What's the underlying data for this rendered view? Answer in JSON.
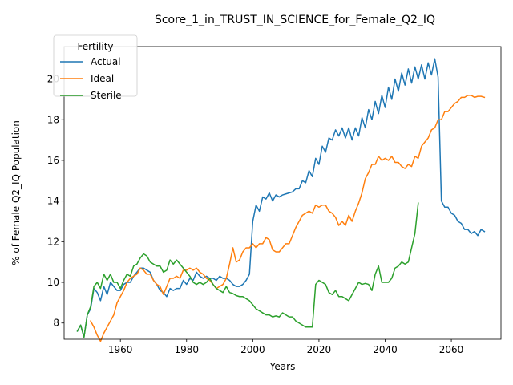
{
  "chart_data": {
    "type": "line",
    "title": "Score_1_in_TRUST_IN_SCIENCE_for_Female_Q2_IQ",
    "xlabel": "Years",
    "ylabel": "% of Female Q2_IQ Population",
    "xlim": [
      1943,
      2075
    ],
    "ylim": [
      7.2,
      21.6
    ],
    "xticks": [
      1960,
      1980,
      2000,
      2020,
      2040,
      2060
    ],
    "yticks": [
      8,
      10,
      12,
      14,
      16,
      18,
      20
    ],
    "grid": false,
    "legend": {
      "title": "Fertility",
      "position": "top-left"
    },
    "series": [
      {
        "name": "Actual",
        "color": "#1f77b4",
        "x": [
          1947,
          1948,
          1949,
          1950,
          1951,
          1952,
          1953,
          1954,
          1955,
          1956,
          1957,
          1958,
          1959,
          1960,
          1961,
          1962,
          1963,
          1964,
          1965,
          1966,
          1967,
          1968,
          1969,
          1970,
          1971,
          1972,
          1973,
          1974,
          1975,
          1976,
          1977,
          1978,
          1979,
          1980,
          1981,
          1982,
          1983,
          1984,
          1985,
          1986,
          1987,
          1988,
          1989,
          1990,
          1991,
          1992,
          1993,
          1994,
          1995,
          1996,
          1997,
          1998,
          1999,
          2000,
          2001,
          2002,
          2003,
          2004,
          2005,
          2006,
          2007,
          2008,
          2009,
          2010,
          2011,
          2012,
          2013,
          2014,
          2015,
          2016,
          2017,
          2018,
          2019,
          2020,
          2021,
          2022,
          2023,
          2024,
          2025,
          2026,
          2027,
          2028,
          2029,
          2030,
          2031,
          2032,
          2033,
          2034,
          2035,
          2036,
          2037,
          2038,
          2039,
          2040,
          2041,
          2042,
          2043,
          2044,
          2045,
          2046,
          2047,
          2048,
          2049,
          2050,
          2051,
          2052,
          2053,
          2054,
          2055,
          2056,
          2057,
          2058,
          2059,
          2060,
          2061,
          2062,
          2063,
          2064,
          2065,
          2066,
          2067,
          2068,
          2069,
          2070
        ],
        "values": [
          7.6,
          7.9,
          7.3,
          8.4,
          8.7,
          9.7,
          9.5,
          9.1,
          9.8,
          9.4,
          10.0,
          9.8,
          9.6,
          9.6,
          9.9,
          10.0,
          10.0,
          10.3,
          10.5,
          10.7,
          10.7,
          10.6,
          10.5,
          10.1,
          9.9,
          9.6,
          9.5,
          9.3,
          9.7,
          9.6,
          9.7,
          9.7,
          10.1,
          9.9,
          10.2,
          10.1,
          10.5,
          10.3,
          10.2,
          10.3,
          10.2,
          10.2,
          10.1,
          10.3,
          10.2,
          10.2,
          10.1,
          9.9,
          9.8,
          9.8,
          9.9,
          10.1,
          10.4,
          13.0,
          13.8,
          13.5,
          14.2,
          14.1,
          14.4,
          14.0,
          14.3,
          14.2,
          14.3,
          14.35,
          14.4,
          14.45,
          14.6,
          14.6,
          15.0,
          14.9,
          15.5,
          15.2,
          16.1,
          15.8,
          16.7,
          16.4,
          17.1,
          17.0,
          17.5,
          17.2,
          17.6,
          17.1,
          17.6,
          17.0,
          17.6,
          17.2,
          18.1,
          17.6,
          18.5,
          18.0,
          18.9,
          18.3,
          19.2,
          18.6,
          19.6,
          19.0,
          20.0,
          19.4,
          20.3,
          19.7,
          20.5,
          19.8,
          20.6,
          20.0,
          20.7,
          20.0,
          20.8,
          20.2,
          21.0,
          20.1,
          14.0,
          13.7,
          13.7,
          13.4,
          13.3,
          13.0,
          12.9,
          12.6,
          12.6,
          12.4,
          12.5,
          12.3,
          12.6,
          12.5
        ]
      },
      {
        "name": "Ideal",
        "color": "#ff7f0e",
        "x": [
          1951,
          1952,
          1953,
          1954,
          1955,
          1956,
          1957,
          1958,
          1959,
          1960,
          1961,
          1962,
          1963,
          1964,
          1965,
          1966,
          1967,
          1968,
          1969,
          1970,
          1971,
          1972,
          1973,
          1974,
          1975,
          1976,
          1977,
          1978,
          1979,
          1980,
          1981,
          1982,
          1983,
          1984,
          1985,
          1986,
          1987,
          1988,
          1989,
          1990,
          1991,
          1992,
          1993,
          1994,
          1995,
          1996,
          1997,
          1998,
          1999,
          2000,
          2001,
          2002,
          2003,
          2004,
          2005,
          2006,
          2007,
          2008,
          2009,
          2010,
          2011,
          2012,
          2013,
          2014,
          2015,
          2016,
          2017,
          2018,
          2019,
          2020,
          2021,
          2022,
          2023,
          2024,
          2025,
          2026,
          2027,
          2028,
          2029,
          2030,
          2031,
          2032,
          2033,
          2034,
          2035,
          2036,
          2037,
          2038,
          2039,
          2040,
          2041,
          2042,
          2043,
          2044,
          2045,
          2046,
          2047,
          2048,
          2049,
          2050,
          2051,
          2052,
          2053,
          2054,
          2055,
          2056,
          2057,
          2058,
          2059,
          2060,
          2061,
          2062,
          2063,
          2064,
          2065,
          2066,
          2067,
          2068,
          2069,
          2070
        ],
        "values": [
          8.1,
          7.8,
          7.4,
          7.1,
          7.5,
          7.8,
          8.1,
          8.4,
          9.0,
          9.3,
          9.6,
          10.0,
          10.2,
          10.3,
          10.4,
          10.7,
          10.6,
          10.4,
          10.4,
          10.1,
          9.9,
          9.8,
          9.4,
          9.8,
          10.2,
          10.2,
          10.3,
          10.2,
          10.6,
          10.6,
          10.7,
          10.6,
          10.7,
          10.5,
          10.4,
          10.2,
          10.1,
          9.9,
          9.7,
          9.8,
          9.9,
          10.2,
          10.9,
          11.7,
          11.0,
          11.1,
          11.5,
          11.7,
          11.7,
          11.9,
          11.7,
          11.9,
          11.9,
          12.2,
          12.1,
          11.6,
          11.5,
          11.5,
          11.7,
          11.9,
          11.9,
          12.3,
          12.7,
          13.0,
          13.3,
          13.4,
          13.5,
          13.4,
          13.8,
          13.7,
          13.8,
          13.8,
          13.5,
          13.4,
          13.2,
          12.8,
          13.0,
          12.8,
          13.3,
          13.0,
          13.5,
          13.9,
          14.4,
          15.1,
          15.4,
          15.8,
          15.8,
          16.2,
          16.0,
          16.1,
          16.0,
          16.2,
          15.9,
          15.9,
          15.7,
          15.6,
          15.8,
          15.7,
          16.2,
          16.1,
          16.7,
          16.9,
          17.1,
          17.5,
          17.6,
          18.0,
          18.0,
          18.4,
          18.4,
          18.6,
          18.8,
          18.9,
          19.1,
          19.1,
          19.2,
          19.2,
          19.1,
          19.15,
          19.15,
          19.1
        ]
      },
      {
        "name": "Sterile",
        "color": "#2ca02c",
        "x": [
          1947,
          1948,
          1949,
          1950,
          1951,
          1952,
          1953,
          1954,
          1955,
          1956,
          1957,
          1958,
          1959,
          1960,
          1961,
          1962,
          1963,
          1964,
          1965,
          1966,
          1967,
          1968,
          1969,
          1970,
          1971,
          1972,
          1973,
          1974,
          1975,
          1976,
          1977,
          1978,
          1979,
          1980,
          1981,
          1982,
          1983,
          1984,
          1985,
          1986,
          1987,
          1988,
          1989,
          1990,
          1991,
          1992,
          1993,
          1994,
          1995,
          1996,
          1997,
          1998,
          1999,
          2000,
          2001,
          2002,
          2003,
          2004,
          2005,
          2006,
          2007,
          2008,
          2009,
          2010,
          2011,
          2012,
          2013,
          2014,
          2015,
          2016,
          2017,
          2018,
          2019,
          2020,
          2021,
          2022,
          2023,
          2024,
          2025,
          2026,
          2027,
          2028,
          2029,
          2030,
          2031,
          2032,
          2033,
          2034,
          2035,
          2036,
          2037,
          2038,
          2039,
          2040,
          2041,
          2042,
          2043,
          2044,
          2045,
          2046,
          2047,
          2048,
          2049,
          2050
        ],
        "values": [
          7.6,
          7.9,
          7.3,
          8.4,
          8.8,
          9.8,
          10.0,
          9.7,
          10.4,
          10.1,
          10.4,
          10.0,
          10.0,
          9.7,
          10.1,
          10.4,
          10.3,
          10.8,
          10.9,
          11.2,
          11.4,
          11.3,
          11.0,
          10.9,
          10.8,
          10.8,
          10.5,
          10.6,
          11.1,
          10.9,
          11.1,
          10.9,
          10.7,
          10.5,
          10.3,
          10.0,
          9.9,
          10.0,
          9.9,
          10.0,
          10.2,
          9.9,
          9.7,
          9.6,
          9.5,
          9.8,
          9.5,
          9.45,
          9.35,
          9.3,
          9.3,
          9.2,
          9.1,
          8.9,
          8.7,
          8.6,
          8.5,
          8.4,
          8.4,
          8.3,
          8.35,
          8.3,
          8.5,
          8.4,
          8.3,
          8.3,
          8.1,
          8.0,
          7.9,
          7.8,
          7.8,
          7.8,
          9.9,
          10.1,
          10.0,
          9.9,
          9.5,
          9.4,
          9.6,
          9.3,
          9.3,
          9.2,
          9.1,
          9.4,
          9.7,
          10.0,
          9.9,
          9.95,
          9.9,
          9.6,
          10.4,
          10.8,
          10.0,
          10.0,
          10.0,
          10.2,
          10.7,
          10.8,
          11.0,
          10.9,
          11.0,
          11.7,
          12.4,
          13.9
        ]
      }
    ]
  }
}
